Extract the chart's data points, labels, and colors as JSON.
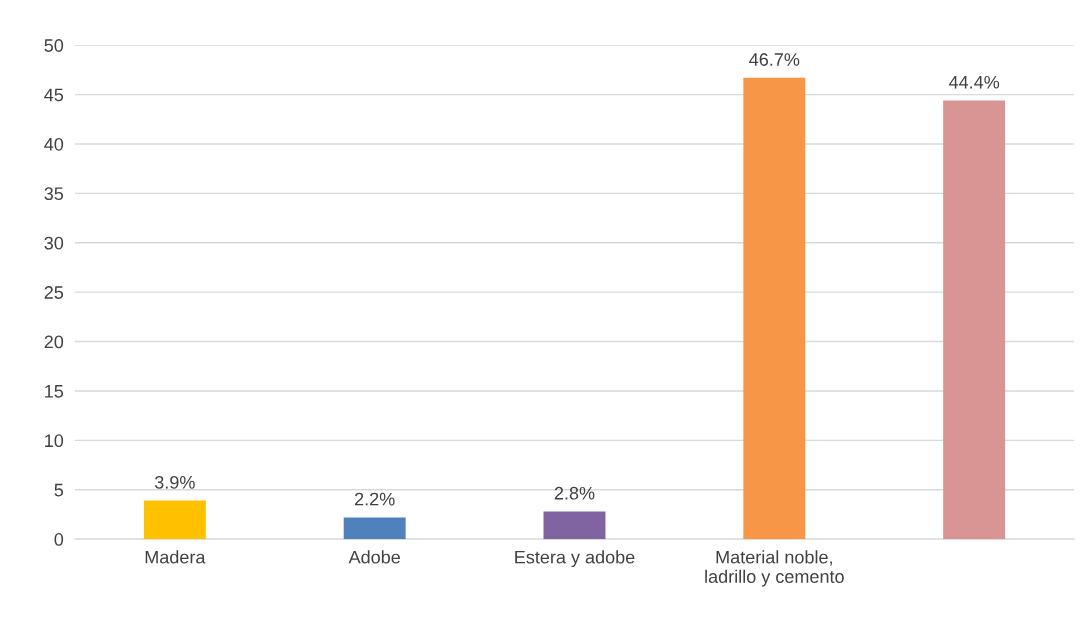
{
  "chart_data": {
    "type": "bar",
    "categories": [
      "Madera",
      "Adobe",
      "Estera y adobe",
      "Material noble,\nladrillo y cemento",
      null
    ],
    "values": [
      3.9,
      2.2,
      2.8,
      46.7,
      44.4
    ],
    "colors": [
      "#ffc000",
      "#4f81bd",
      "#8064a2",
      "#f79646",
      "#d99594"
    ],
    "value_labels": [
      "3.9%",
      "2.2%",
      "2.8%",
      "46.7%",
      "44.4%"
    ],
    "ylim": [
      0,
      50
    ],
    "yticks": [
      0,
      5,
      10,
      15,
      20,
      25,
      30,
      35,
      40,
      45,
      50
    ],
    "grid": "y",
    "legend": false
  }
}
